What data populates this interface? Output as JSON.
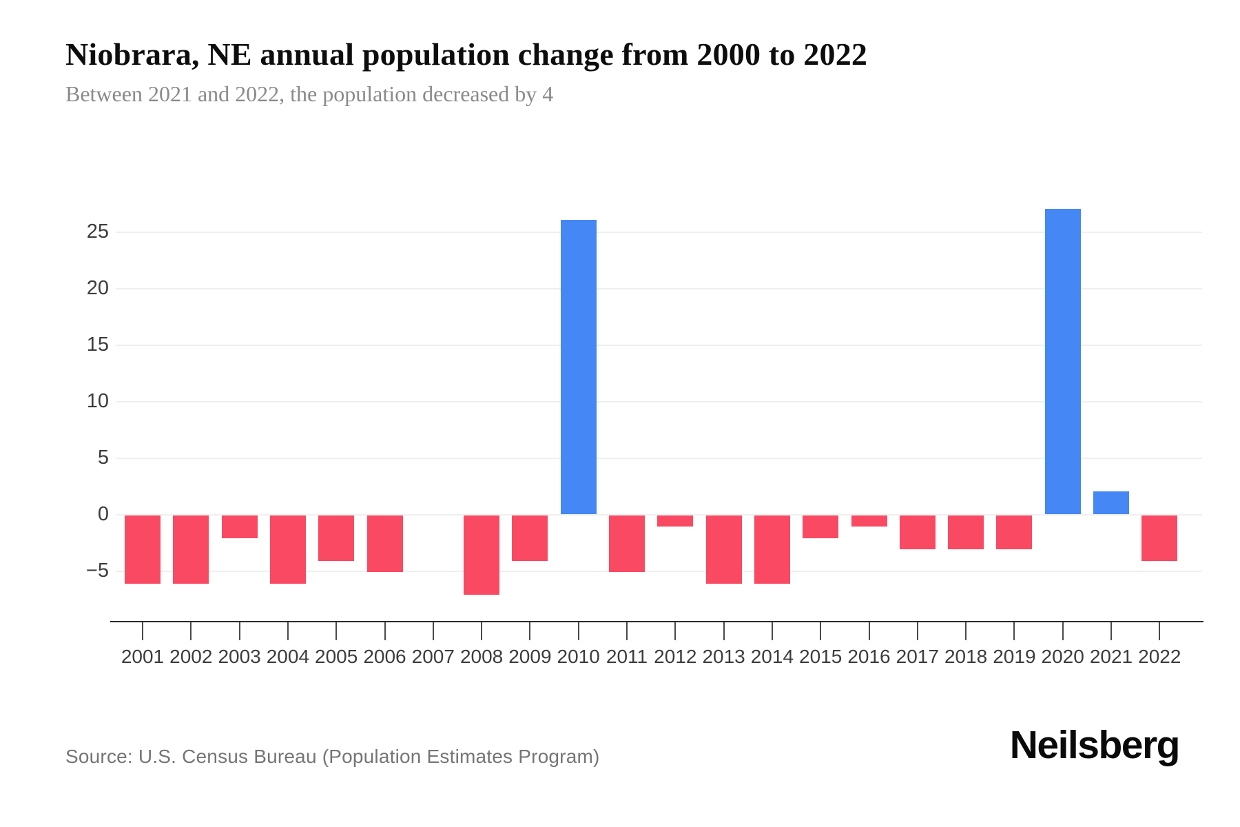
{
  "header": {
    "title": "Niobrara, NE annual population change from 2000 to 2022",
    "subtitle": "Between 2021 and 2022, the population decreased by 4"
  },
  "chart_data": {
    "type": "bar",
    "title": "Niobrara, NE annual population change from 2000 to 2022",
    "subtitle": "Between 2021 and 2022, the population decreased by 4",
    "categories": [
      "2001",
      "2002",
      "2003",
      "2004",
      "2005",
      "2006",
      "2007",
      "2008",
      "2009",
      "2010",
      "2011",
      "2012",
      "2013",
      "2014",
      "2015",
      "2016",
      "2017",
      "2018",
      "2019",
      "2020",
      "2021",
      "2022"
    ],
    "values": [
      -6,
      -6,
      -2,
      -6,
      -4,
      -5,
      0,
      -7,
      -4,
      26,
      -5,
      -1,
      -6,
      -6,
      -2,
      -1,
      -3,
      -3,
      -3,
      27,
      2,
      -4
    ],
    "xlabel": "",
    "ylabel": "",
    "ylim": [
      -7,
      27
    ],
    "yticks": [
      25,
      20,
      15,
      10,
      5,
      0,
      -5
    ],
    "ytick_labels": [
      "25",
      "20",
      "15",
      "10",
      "5",
      "0",
      "−5"
    ],
    "grid": true,
    "legend": false,
    "colors": {
      "positive": "#4587F4",
      "negative": "#F94963"
    }
  },
  "footer": {
    "source": "Source: U.S. Census Bureau (Population Estimates Program)",
    "brand": "Neilsberg"
  }
}
